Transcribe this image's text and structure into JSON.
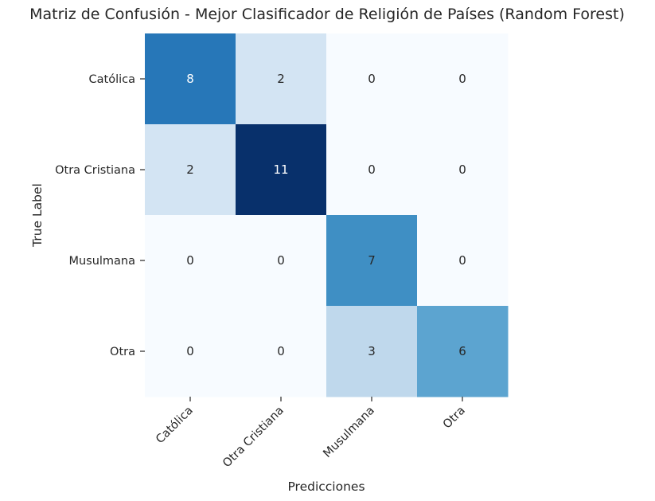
{
  "chart_data": {
    "type": "heatmap",
    "title": "Matriz de Confusión - Mejor Clasificador de Religión de Países (Random Forest)",
    "xlabel": "Predicciones",
    "ylabel": "True Label",
    "x_categories": [
      "Católica",
      "Otra Cristiana",
      "Musulmana",
      "Otra"
    ],
    "y_categories": [
      "Católica",
      "Otra Cristiana",
      "Musulmana",
      "Otra"
    ],
    "matrix": [
      [
        8,
        2,
        0,
        0
      ],
      [
        2,
        11,
        0,
        0
      ],
      [
        0,
        0,
        7,
        0
      ],
      [
        0,
        0,
        3,
        6
      ]
    ],
    "colormap": "Blues",
    "value_range": [
      0,
      11
    ],
    "colorbar": false
  }
}
